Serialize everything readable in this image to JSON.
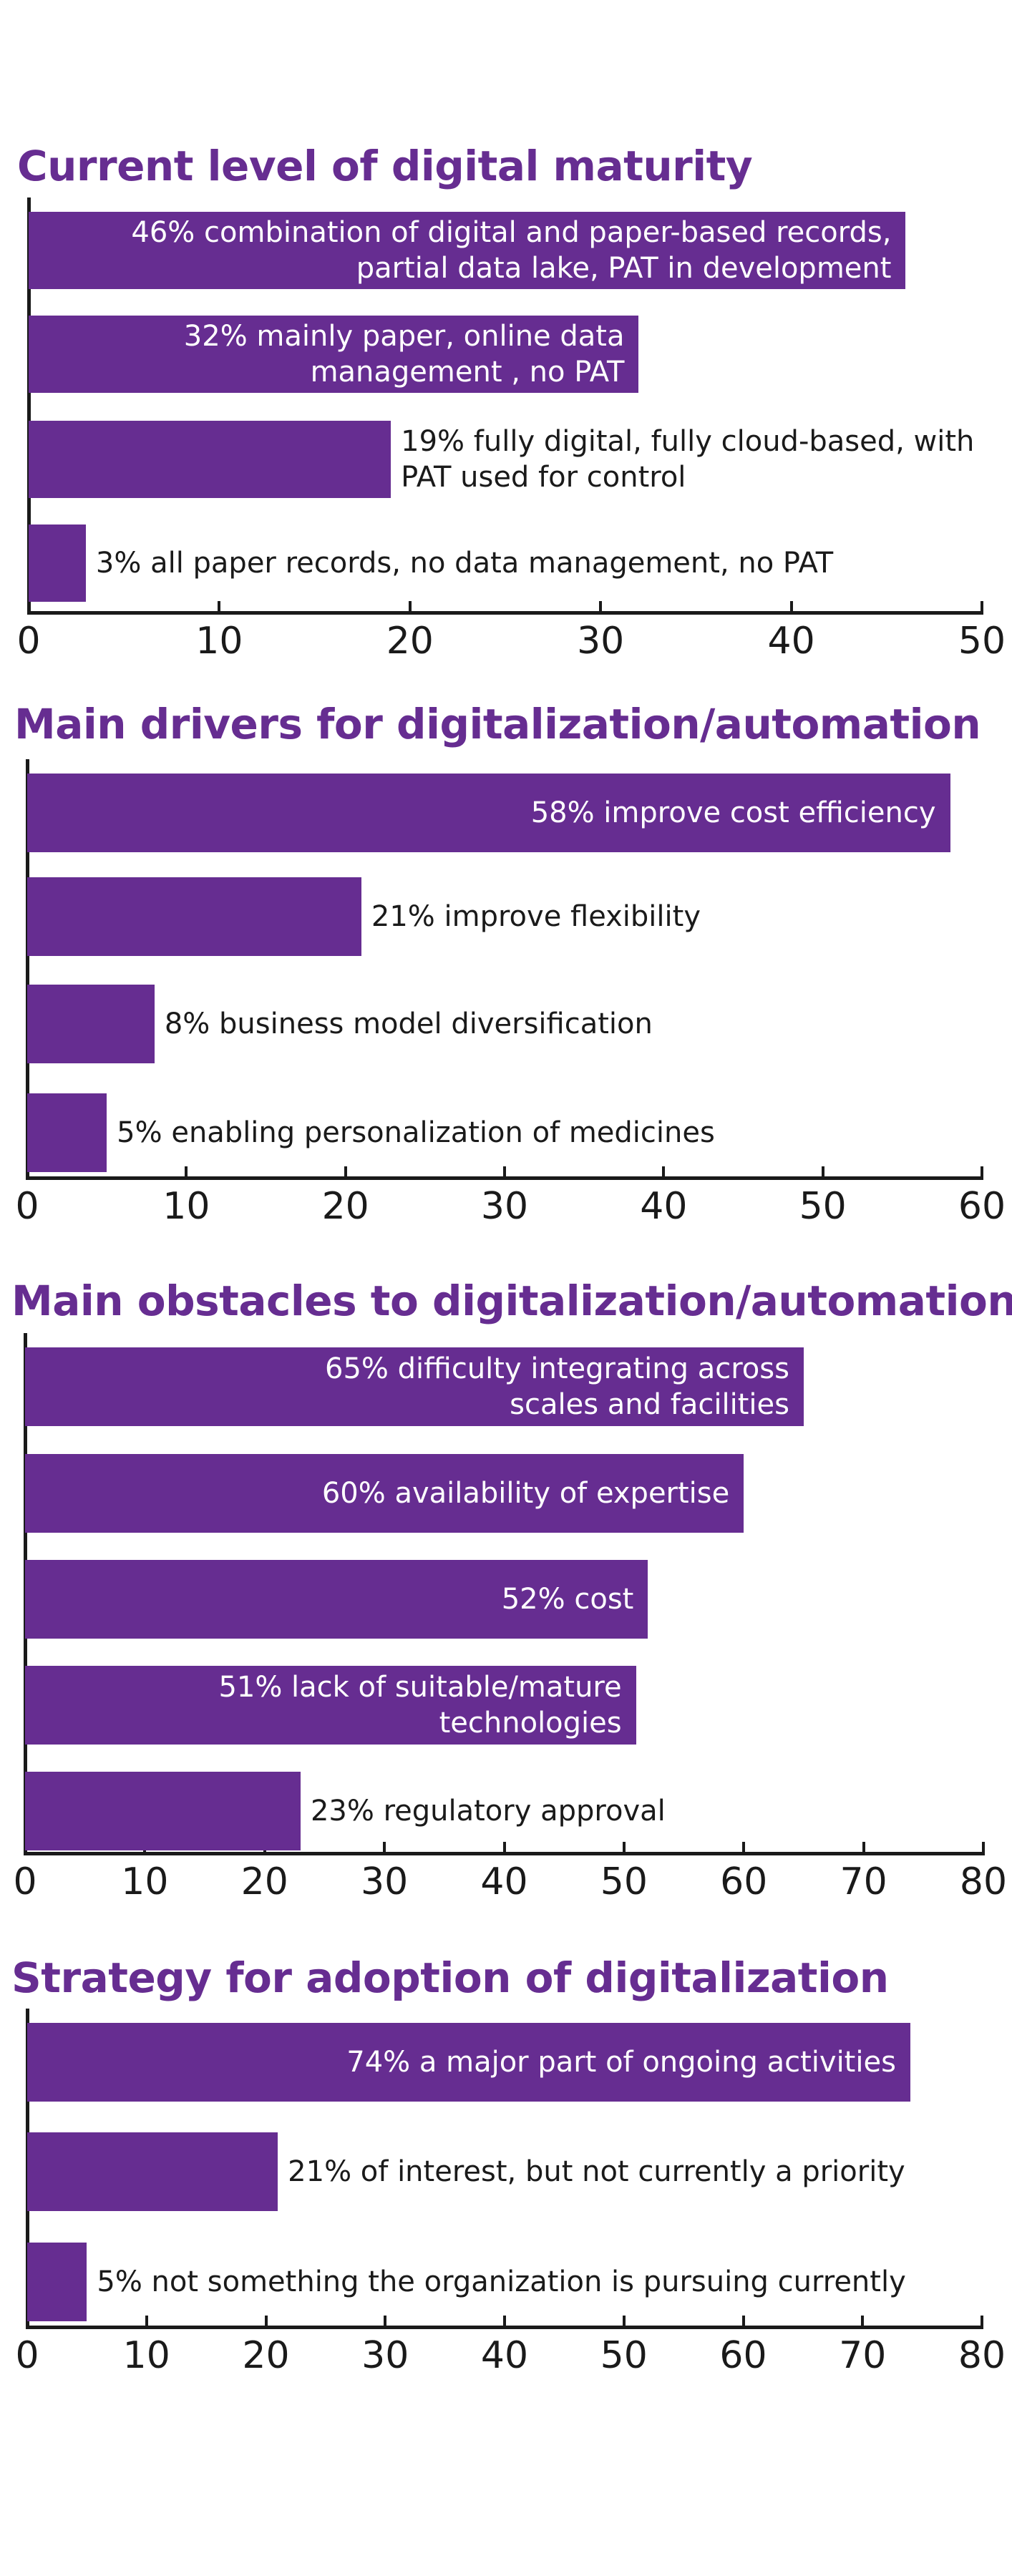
{
  "colors": {
    "bar": "#662d91",
    "title": "#662d91",
    "axis": "#1a1a1a",
    "label_inside": "#ffffff",
    "label_outside": "#1a1a1a"
  },
  "chart_data": [
    {
      "type": "bar",
      "orientation": "horizontal",
      "title": "Current level of digital maturity",
      "xlim": [
        0,
        50
      ],
      "xticks": [
        "0",
        "10",
        "20",
        "30",
        "40",
        "50"
      ],
      "bars": [
        {
          "value": 46,
          "label": "46% combination of digital and paper-based records,\npartial data lake, PAT in development",
          "label_inside": true
        },
        {
          "value": 32,
          "label": "32% mainly paper, online data\nmanagement , no PAT",
          "label_inside": true
        },
        {
          "value": 19,
          "label": "19% fully digital, fully cloud-based, with\nPAT used for control",
          "label_inside": false
        },
        {
          "value": 3,
          "label": "3% all paper records, no data management, no PAT",
          "label_inside": false
        }
      ]
    },
    {
      "type": "bar",
      "orientation": "horizontal",
      "title": "Main drivers for digitalization/automation",
      "xlim": [
        0,
        60
      ],
      "xticks": [
        "0",
        "10",
        "20",
        "30",
        "40",
        "50",
        "60"
      ],
      "bars": [
        {
          "value": 58,
          "label": "58% improve cost efficiency",
          "label_inside": true
        },
        {
          "value": 21,
          "label": "21% improve flexibility",
          "label_inside": false
        },
        {
          "value": 8,
          "label": "8% business model diversification",
          "label_inside": false
        },
        {
          "value": 5,
          "label": "5% enabling personalization of medicines",
          "label_inside": false
        }
      ]
    },
    {
      "type": "bar",
      "orientation": "horizontal",
      "title": "Main obstacles to digitalization/automation",
      "xlim": [
        0,
        80
      ],
      "xticks": [
        "0",
        "10",
        "20",
        "30",
        "40",
        "50",
        "60",
        "70",
        "80"
      ],
      "bars": [
        {
          "value": 65,
          "label": "65% difficulty integrating across\nscales and facilities",
          "label_inside": true
        },
        {
          "value": 60,
          "label": "60% availability of expertise",
          "label_inside": true
        },
        {
          "value": 52,
          "label": "52% cost",
          "label_inside": true
        },
        {
          "value": 51,
          "label": "51% lack of suitable/mature technologies",
          "label_inside": true
        },
        {
          "value": 23,
          "label": "23% regulatory approval",
          "label_inside": false
        }
      ]
    },
    {
      "type": "bar",
      "orientation": "horizontal",
      "title": "Strategy for adoption of digitalization",
      "xlim": [
        0,
        80
      ],
      "xticks": [
        "0",
        "10",
        "20",
        "30",
        "40",
        "50",
        "60",
        "70",
        "80"
      ],
      "bars": [
        {
          "value": 74,
          "label": "74% a major part of ongoing activities",
          "label_inside": true
        },
        {
          "value": 21,
          "label": "21% of interest, but not currently a priority",
          "label_inside": false
        },
        {
          "value": 5,
          "label": "5% not something the organization is pursuing currently",
          "label_inside": false
        }
      ]
    }
  ]
}
